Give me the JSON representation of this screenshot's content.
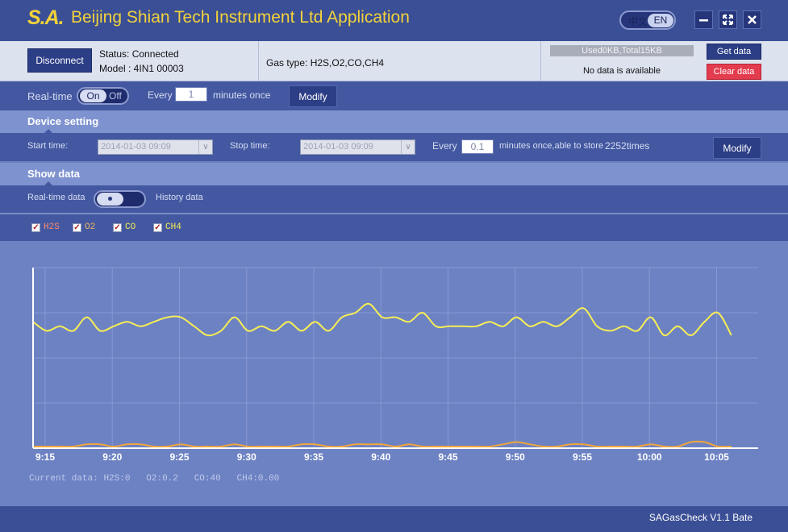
{
  "titlebar": {
    "logo": "S.A.",
    "title": "Beijing Shian Tech Instrument Ltd Application",
    "lang_cn": "中文",
    "lang_en": "EN"
  },
  "connection": {
    "disconnect_label": "Disconnect",
    "status": "Status: Connected",
    "model": "Model : 4IN1 00003",
    "gas_type": "Gas type: H2S,O2,CO,CH4",
    "storage": "Used0KB,Total15KB",
    "no_data": "No data is available",
    "get_data_label": "Get data",
    "clear_data_label": "Clear data"
  },
  "realtime": {
    "label": "Real-time",
    "on_label": "On",
    "off_label": "Off",
    "every_label": "Every",
    "interval_value": "1",
    "unit_label": "minutes once",
    "modify_label": "Modify"
  },
  "device_setting": {
    "title": "Device setting",
    "start_label": "Start time:",
    "start_value": "2014-01-03 09:09",
    "stop_label": "Stop time:",
    "stop_value": "2014-01-03 09:09",
    "every_label": "Every",
    "interval_value": "0.1",
    "unit_label": "minutes once,able to store",
    "store_count": "2252times",
    "modify_label": "Modify"
  },
  "show_data": {
    "title": "Show data",
    "realtime_label": "Real-time data",
    "history_label": "History data"
  },
  "legend": [
    {
      "name": "H2S",
      "checked": true
    },
    {
      "name": "O2",
      "checked": true
    },
    {
      "name": "CO",
      "checked": true
    },
    {
      "name": "CH4",
      "checked": true
    }
  ],
  "colors": {
    "H2S": "#ff5a3c",
    "O2": "#f2a63a",
    "CO": "#f7ee55",
    "CH4": "#f7ee55",
    "chart_bg": "#6d82c3",
    "grid": "#8898d2",
    "axis": "#ffffff"
  },
  "chart_data": {
    "type": "line",
    "x_ticks": [
      "9:15",
      "9:20",
      "9:25",
      "9:30",
      "9:35",
      "9:40",
      "9:45",
      "9:50",
      "9:55",
      "10:00",
      "10:05"
    ],
    "x": [
      "9:15",
      "9:16",
      "9:17",
      "9:18",
      "9:19",
      "9:20",
      "9:21",
      "9:22",
      "9:23",
      "9:24",
      "9:25",
      "9:26",
      "9:27",
      "9:28",
      "9:29",
      "9:30",
      "9:31",
      "9:32",
      "9:33",
      "9:34",
      "9:35",
      "9:36",
      "9:37",
      "9:38",
      "9:39",
      "9:40",
      "9:41",
      "9:42",
      "9:43",
      "9:44",
      "9:45",
      "9:46",
      "9:47",
      "9:48",
      "9:49",
      "9:50",
      "9:51",
      "9:52",
      "9:53",
      "9:54",
      "9:55",
      "9:56",
      "9:57",
      "9:58",
      "9:59",
      "10:00",
      "10:01",
      "10:02",
      "10:03",
      "10:04",
      "10:05",
      "10:06",
      "10:07"
    ],
    "series": [
      {
        "name": "CO",
        "values": [
          2.8,
          2.6,
          2.7,
          2.6,
          2.9,
          2.6,
          2.7,
          2.8,
          2.7,
          2.8,
          2.9,
          2.9,
          2.7,
          2.5,
          2.6,
          2.9,
          2.6,
          2.7,
          2.6,
          2.8,
          2.6,
          2.8,
          2.6,
          2.9,
          3.0,
          3.2,
          2.9,
          2.9,
          2.8,
          3.0,
          2.7,
          2.7,
          2.7,
          2.7,
          2.8,
          2.7,
          2.9,
          2.7,
          2.8,
          2.7,
          2.9,
          3.1,
          2.7,
          2.6,
          2.7,
          2.6,
          2.9,
          2.5,
          2.7,
          2.5,
          2.8,
          3.0,
          2.5
        ]
      },
      {
        "name": "O2",
        "values": [
          0,
          0,
          0,
          0,
          0.05,
          0.05,
          0,
          0.05,
          0.05,
          0,
          0,
          0.05,
          0,
          0,
          0,
          0.05,
          0,
          0,
          0,
          0,
          0.05,
          0.05,
          0,
          0,
          0.05,
          0.05,
          0.05,
          0,
          0.05,
          0,
          0,
          0,
          0,
          0,
          0,
          0.05,
          0.1,
          0.05,
          0,
          0,
          0.05,
          0.05,
          0,
          0,
          0,
          0,
          0.05,
          0,
          0,
          0.1,
          0.1,
          0,
          0
        ]
      }
    ],
    "ylim": [
      0,
      4
    ]
  },
  "current": {
    "prefix": "Current data:",
    "h2s": "H2S:0",
    "o2": "O2:0.2",
    "co": "CO:40",
    "ch4": "CH4:0.00"
  },
  "footer": {
    "version": "SAGasCheck V1.1 Bate"
  }
}
